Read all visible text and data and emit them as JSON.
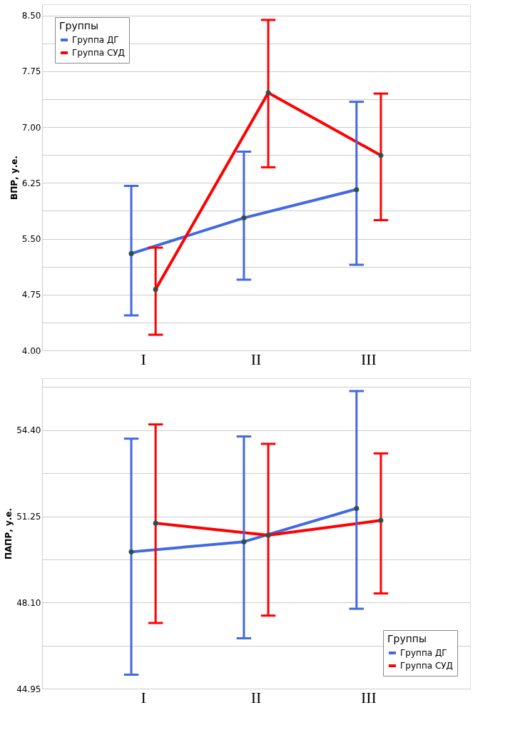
{
  "chart_data": [
    {
      "type": "line",
      "ylabel": "ВПР, у.е.",
      "legend_title": "Группы",
      "legend": "top left",
      "grid": "y",
      "marker": "circle",
      "line_style": "solid",
      "categories": [
        "I",
        "II",
        "III"
      ],
      "ylim": [
        4.0,
        8.65
      ],
      "yticks": [
        {
          "value": 4.0,
          "label": "4.00"
        },
        {
          "value": 4.375,
          "label": null
        },
        4.75,
        {
          "value": 5.125,
          "label": null
        },
        {
          "value": 5.5,
          "label": "5.50"
        },
        {
          "value": 5.875,
          "label": null
        },
        6.25,
        {
          "value": 6.625,
          "label": null
        },
        {
          "value": 7.0,
          "label": "7.00"
        },
        {
          "value": 7.375,
          "label": null
        },
        7.75,
        {
          "value": 8.125,
          "label": null
        },
        {
          "value": 8.5,
          "label": "8.50"
        }
      ],
      "series": [
        {
          "name": "Группа ДГ",
          "color": "#4169e1",
          "values": [
            5.3,
            5.78,
            6.16
          ],
          "errors": [
            [
              4.47,
              6.21
            ],
            [
              4.95,
              6.67
            ],
            [
              5.15,
              7.34
            ]
          ]
        },
        {
          "name": "Группа СУД",
          "color": "#ff0000",
          "values": [
            4.82,
            7.46,
            6.62
          ],
          "errors": [
            [
              4.21,
              5.38
            ],
            [
              6.46,
              8.44
            ],
            [
              5.75,
              7.45
            ]
          ]
        }
      ]
    },
    {
      "type": "line",
      "ylabel": "ПАПР, у.е.",
      "legend_title": "Группы",
      "legend": "bottom right",
      "grid": "y",
      "marker": "circle",
      "line_style": "solid",
      "categories": [
        "I",
        "II",
        "III"
      ],
      "ylim": [
        44.95,
        56.3
      ],
      "yticks": [
        44.95,
        {
          "value": 46.525,
          "label": null
        },
        {
          "value": 48.1,
          "label": "48.10"
        },
        {
          "value": 49.675,
          "label": null
        },
        51.25,
        {
          "value": 52.825,
          "label": null
        },
        {
          "value": 54.4,
          "label": "54.40"
        },
        {
          "value": 55.975,
          "label": null
        }
      ],
      "series": [
        {
          "name": "Группа ДГ",
          "color": "#4169e1",
          "values": [
            49.95,
            50.32,
            51.54
          ],
          "errors": [
            [
              45.46,
              54.09
            ],
            [
              46.79,
              54.17
            ],
            [
              47.87,
              55.83
            ]
          ]
        },
        {
          "name": "Группа СУД",
          "color": "#ff0000",
          "values": [
            51.0,
            50.56,
            51.1
          ],
          "errors": [
            [
              47.35,
              54.61
            ],
            [
              47.62,
              53.9
            ],
            [
              48.43,
              53.55
            ]
          ]
        }
      ]
    }
  ]
}
